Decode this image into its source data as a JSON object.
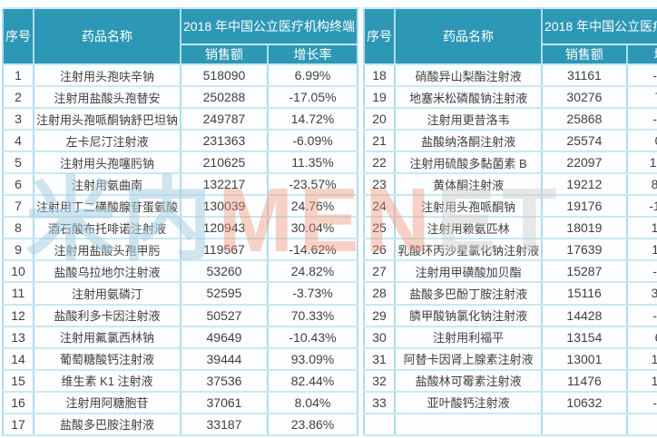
{
  "header": {
    "col_no": "序号",
    "col_name": "药品名称",
    "col_group": "2018 年中国公立医疗机构终端",
    "col_sales": "销售额",
    "col_growth": "增长率"
  },
  "watermark": {
    "part_cn": "米内",
    "part_salmon": "MEN",
    "part_tail": "ET"
  },
  "colors": {
    "header_teal": "#2D98B6",
    "grid_blue": "#AFDCF0",
    "text_gray": "#3F3F3F",
    "watermark_blue": "#A8CDE0",
    "watermark_salmon": "#EE9476"
  },
  "chart_data": {
    "type": "table",
    "title": "2018 年中国公立医疗机构终端",
    "columns": [
      "序号",
      "药品名称",
      "销售额",
      "增长率"
    ],
    "layout": "two side-by-side tables; rows 1-17 left, rows 18-33 right plus one empty trailing row",
    "rows": [
      [
        "1",
        "注射用头孢呋辛钠",
        "518090",
        "6.99%"
      ],
      [
        "2",
        "注射用盐酸头孢替安",
        "250288",
        "-17.05%"
      ],
      [
        "3",
        "注射用头孢哌酮钠舒巴坦钠",
        "249787",
        "14.72%"
      ],
      [
        "4",
        "左卡尼汀注射液",
        "231363",
        "-6.09%"
      ],
      [
        "5",
        "注射用头孢噻肟钠",
        "210625",
        "11.35%"
      ],
      [
        "6",
        "注射用氨曲南",
        "132217",
        "-23.57%"
      ],
      [
        "7",
        "注射用丁二磺酸腺苷蛋氨酸",
        "130039",
        "24.76%"
      ],
      [
        "8",
        "酒石酸布托啡诺注射液",
        "120943",
        "30.04%"
      ],
      [
        "9",
        "注射用盐酸头孢甲肟",
        "119567",
        "-14.62%"
      ],
      [
        "10",
        "盐酸乌拉地尔注射液",
        "53260",
        "24.82%"
      ],
      [
        "11",
        "注射用氨磷汀",
        "52595",
        "-3.73%"
      ],
      [
        "12",
        "盐酸利多卡因注射液",
        "50527",
        "70.33%"
      ],
      [
        "13",
        "注射用氟氯西林钠",
        "49649",
        "-10.43%"
      ],
      [
        "14",
        "葡萄糖酸钙注射液",
        "39444",
        "93.09%"
      ],
      [
        "15",
        "维生素 K1 注射液",
        "37536",
        "82.44%"
      ],
      [
        "16",
        "注射用阿糖胞苷",
        "37061",
        "8.04%"
      ],
      [
        "17",
        "盐酸多巴胺注射液",
        "33187",
        "23.86%"
      ],
      [
        "18",
        "硝酸异山梨酯注射液",
        "31161",
        "-1.14%"
      ],
      [
        "19",
        "地塞米松磷酸钠注射液",
        "30276",
        "7.16%"
      ],
      [
        "20",
        "注射用更昔洛韦",
        "25868",
        "-0.74%"
      ],
      [
        "21",
        "盐酸纳洛酮注射液",
        "25574",
        "0.32%"
      ],
      [
        "22",
        "注射用硫酸多黏菌素 B",
        "22097",
        "10379%"
      ],
      [
        "23",
        "黄体酮注射液",
        "19212",
        "87.91%"
      ],
      [
        "24",
        "注射用头孢哌酮钠",
        "19176",
        "-10.47%"
      ],
      [
        "25",
        "注射用赖氨匹林",
        "18019",
        "18.12%"
      ],
      [
        "26",
        "乳酸环丙沙星氯化钠注射液",
        "17639",
        "11.16%"
      ],
      [
        "27",
        "注射用甲磺酸加贝酯",
        "15287",
        "-8.56%"
      ],
      [
        "28",
        "盐酸多巴酚丁胺注射液",
        "15116",
        "30.59%"
      ],
      [
        "29",
        "膦甲酸钠氯化钠注射液",
        "14428",
        "-4.40%"
      ],
      [
        "30",
        "注射用利福平",
        "13154",
        "6.60%"
      ],
      [
        "31",
        "阿替卡因肾上腺素注射液",
        "13001",
        "14.50%"
      ],
      [
        "32",
        "盐酸林可霉素注射液",
        "11476",
        "10.30%"
      ],
      [
        "33",
        "亚叶酸钙注射液",
        "10632",
        "-5.08%"
      ]
    ]
  }
}
